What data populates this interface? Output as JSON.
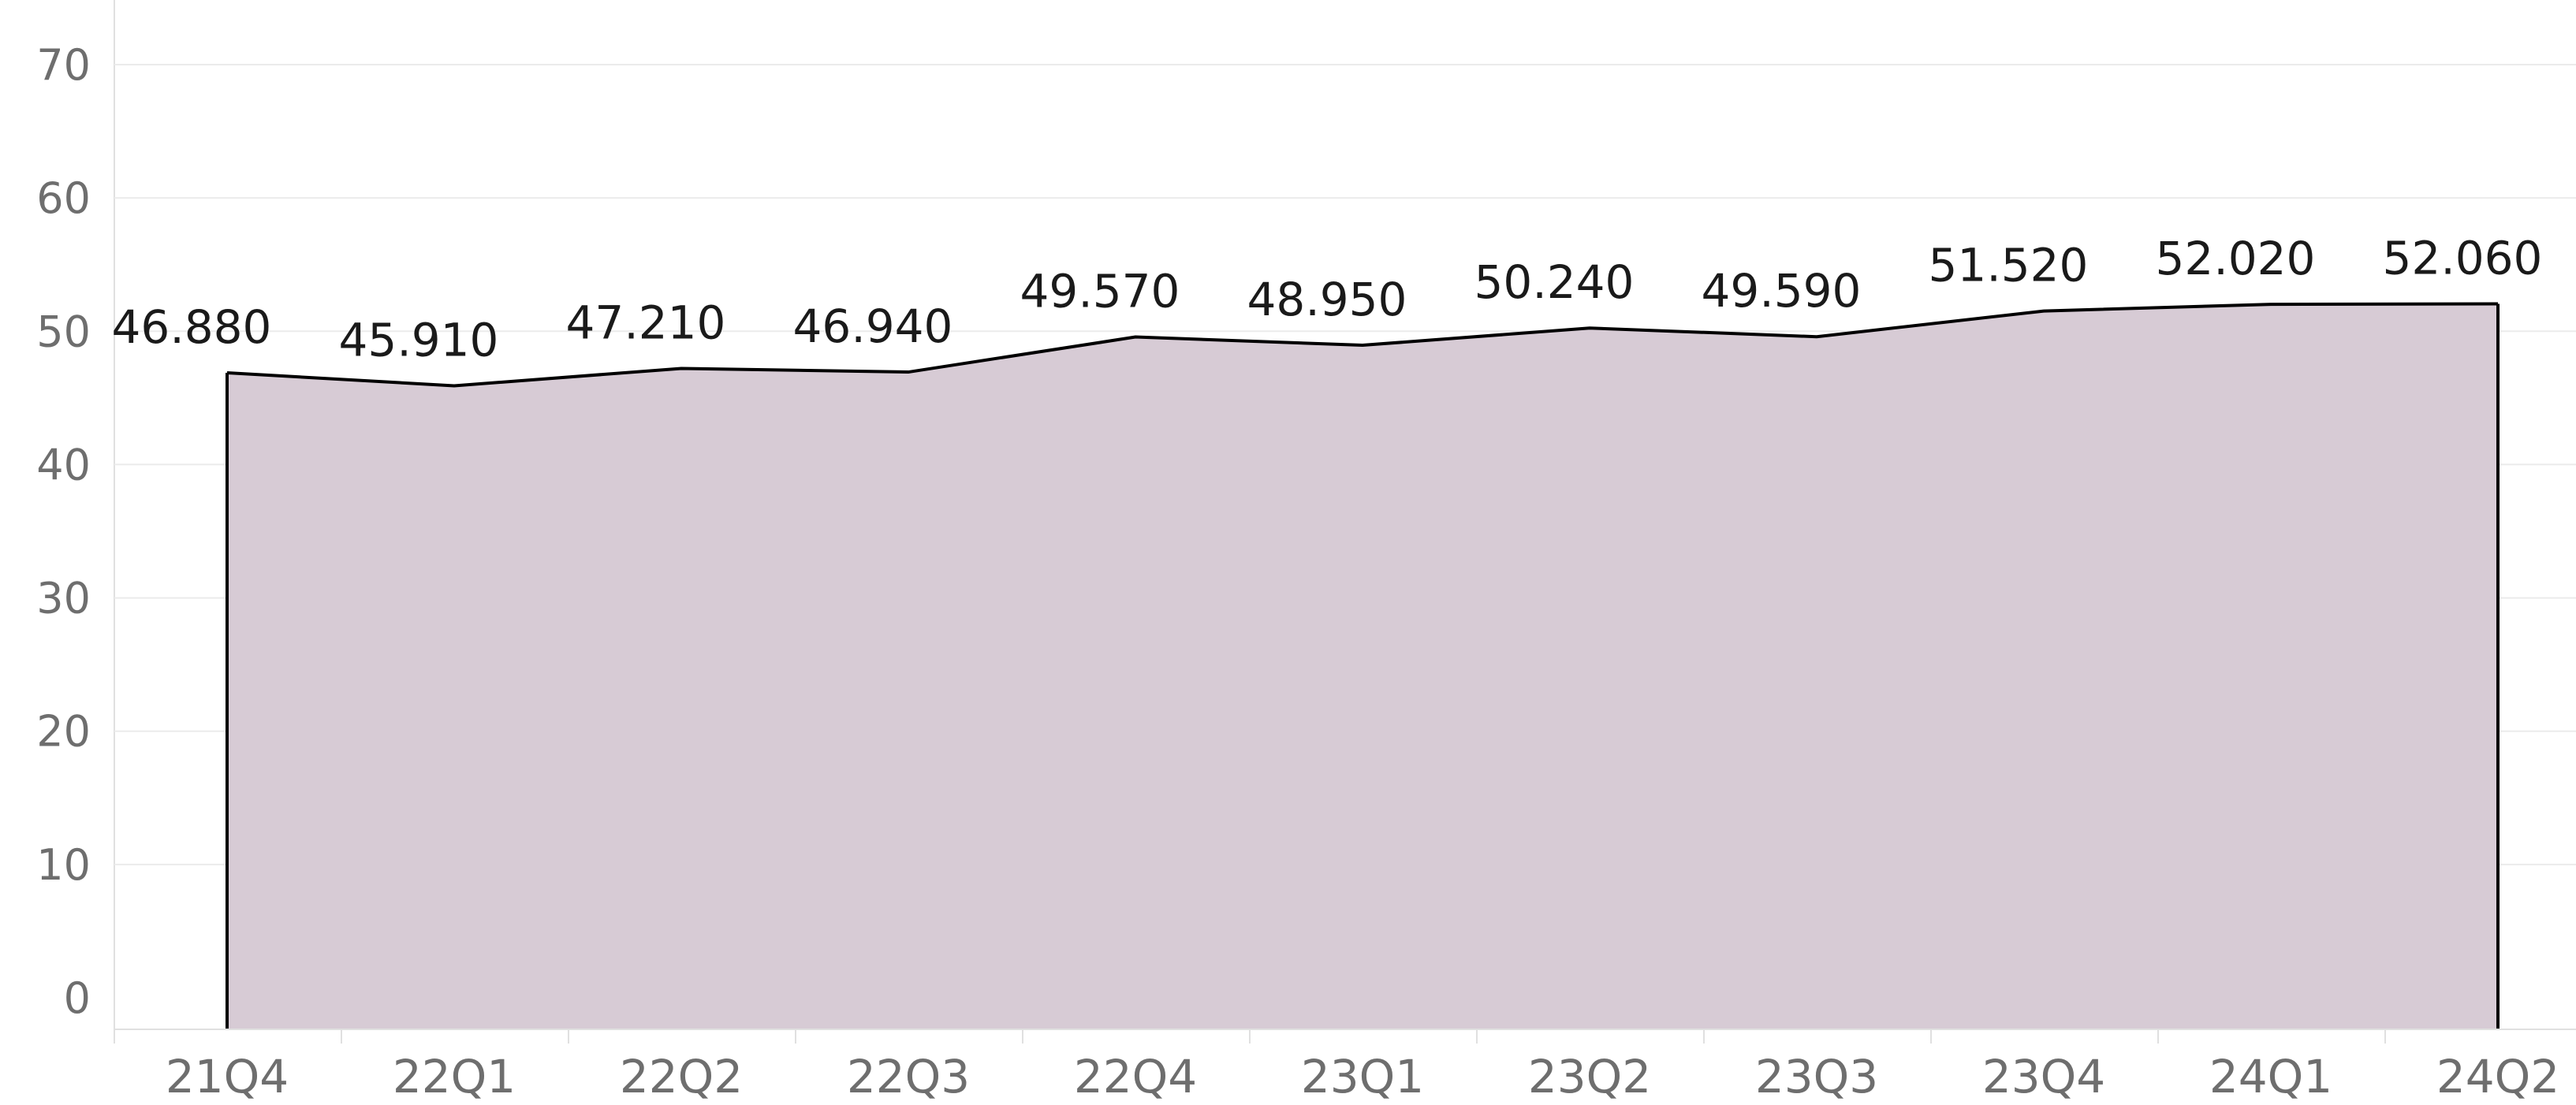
{
  "chart_data": {
    "type": "area",
    "categories": [
      "21Q4",
      "22Q1",
      "22Q2",
      "22Q3",
      "22Q4",
      "23Q1",
      "23Q2",
      "23Q3",
      "23Q4",
      "24Q1",
      "24Q2"
    ],
    "series": [
      {
        "values": [
          46.88,
          45.91,
          47.21,
          46.94,
          49.57,
          48.95,
          50.24,
          49.59,
          51.52,
          52.02,
          52.06
        ],
        "labels": [
          "46.880",
          "45.910",
          "47.210",
          "46.940",
          "49.570",
          "48.950",
          "50.240",
          "49.590",
          "51.520",
          "52.020",
          "52.060"
        ]
      }
    ],
    "yticks": [
      "0",
      "10",
      "20",
      "30",
      "40",
      "50",
      "60",
      "70"
    ],
    "ylim": [
      -2,
      75
    ],
    "grid": true,
    "legend": "none",
    "colors": {
      "fill": "#d7cbd5",
      "line": "#000000",
      "grid": "#ebebeb",
      "tick_text": "#6e6e6e",
      "label_text": "#1a1a1a"
    }
  }
}
